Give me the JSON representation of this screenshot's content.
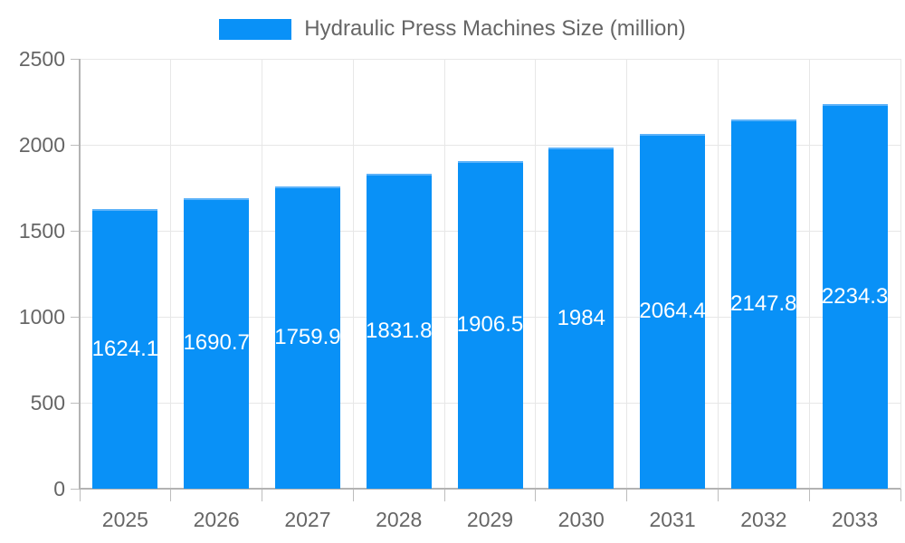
{
  "legend": {
    "label": "Hydraulic Press Machines Size (million)"
  },
  "chart_data": {
    "type": "bar",
    "title": "Hydraulic Press Machines Size (million)",
    "categories": [
      "2025",
      "2026",
      "2027",
      "2028",
      "2029",
      "2030",
      "2031",
      "2032",
      "2033"
    ],
    "values": [
      1624.1,
      1690.7,
      1759.9,
      1831.8,
      1906.5,
      1984,
      2064.4,
      2147.8,
      2234.3
    ],
    "value_labels": [
      "1624.1",
      "1690.7",
      "1759.9",
      "1831.8",
      "1906.5",
      "1984",
      "2064.4",
      "2147.8",
      "2234.3"
    ],
    "xlabel": "",
    "ylabel": "",
    "ylim": [
      0,
      2500
    ],
    "yticks": [
      0,
      500,
      1000,
      1500,
      2000,
      2500
    ],
    "grid": true,
    "legend_position": "top",
    "value_label_position": "inside-center",
    "colors": {
      "bar": "#0991f7",
      "bar_border": "#5cb2f9",
      "grid": "#e7e7e7",
      "axis_line": "#b3b3b3",
      "tick": "#bdbdbd",
      "text": "#666666",
      "value_label": "#ffffff",
      "background": "#ffffff"
    }
  }
}
